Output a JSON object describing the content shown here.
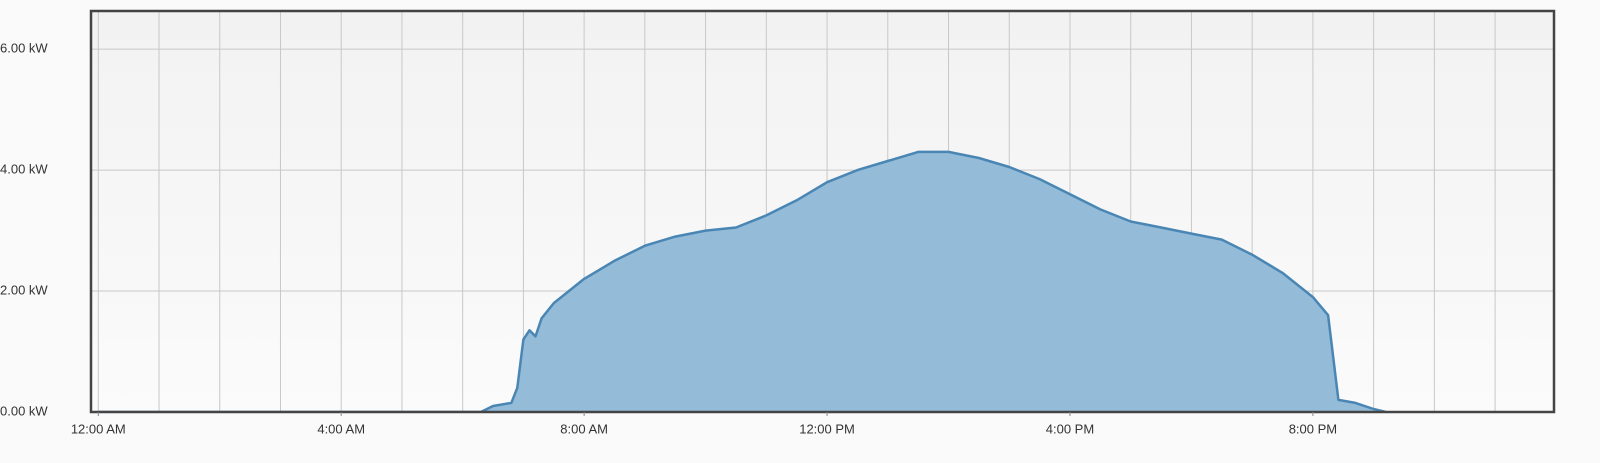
{
  "chart_data": {
    "type": "area",
    "x": [
      0,
      6.3,
      6.5,
      6.8,
      6.9,
      7.0,
      7.1,
      7.2,
      7.3,
      7.5,
      8,
      8.5,
      9,
      9.5,
      10,
      10.5,
      11,
      11.5,
      12,
      12.5,
      13,
      13.5,
      14,
      14.5,
      15,
      15.5,
      16,
      16.5,
      17,
      17.5,
      18,
      18.5,
      19,
      19.5,
      20,
      20.25,
      20.42,
      20.7,
      21,
      21.2
    ],
    "values": [
      0,
      0,
      0.1,
      0.15,
      0.4,
      1.2,
      1.35,
      1.25,
      1.55,
      1.8,
      2.2,
      2.5,
      2.75,
      2.9,
      3.0,
      3.05,
      3.25,
      3.5,
      3.8,
      4.0,
      4.15,
      4.3,
      4.3,
      4.2,
      4.05,
      3.85,
      3.6,
      3.35,
      3.15,
      3.05,
      2.95,
      2.85,
      2.6,
      2.3,
      1.9,
      1.6,
      0.2,
      0.15,
      0.05,
      0
    ],
    "color": "#4a86b4",
    "fill": "#94bbd8",
    "xlim": [
      -0.12,
      23.97
    ],
    "xticks": [
      {
        "value": 0,
        "label": "12:00 AM"
      },
      {
        "value": 4,
        "label": "4:00 AM"
      },
      {
        "value": 8,
        "label": "8:00 AM"
      },
      {
        "value": 12,
        "label": "12:00 PM"
      },
      {
        "value": 16,
        "label": "4:00 PM"
      },
      {
        "value": 20,
        "label": "8:00 PM"
      }
    ],
    "xgrid": [
      0,
      1,
      2,
      3,
      4,
      5,
      6,
      7,
      8,
      9,
      10,
      11,
      12,
      13,
      14,
      15,
      16,
      17,
      18,
      19,
      20,
      21,
      22,
      23
    ],
    "ylim": [
      0,
      6.63
    ],
    "yticks": [
      {
        "value": 0,
        "label": "0.00 kW"
      },
      {
        "value": 2,
        "label": "2.00 kW"
      },
      {
        "value": 4,
        "label": "4.00 kW"
      },
      {
        "value": 6,
        "label": "6.00 kW"
      }
    ],
    "grid": true
  }
}
